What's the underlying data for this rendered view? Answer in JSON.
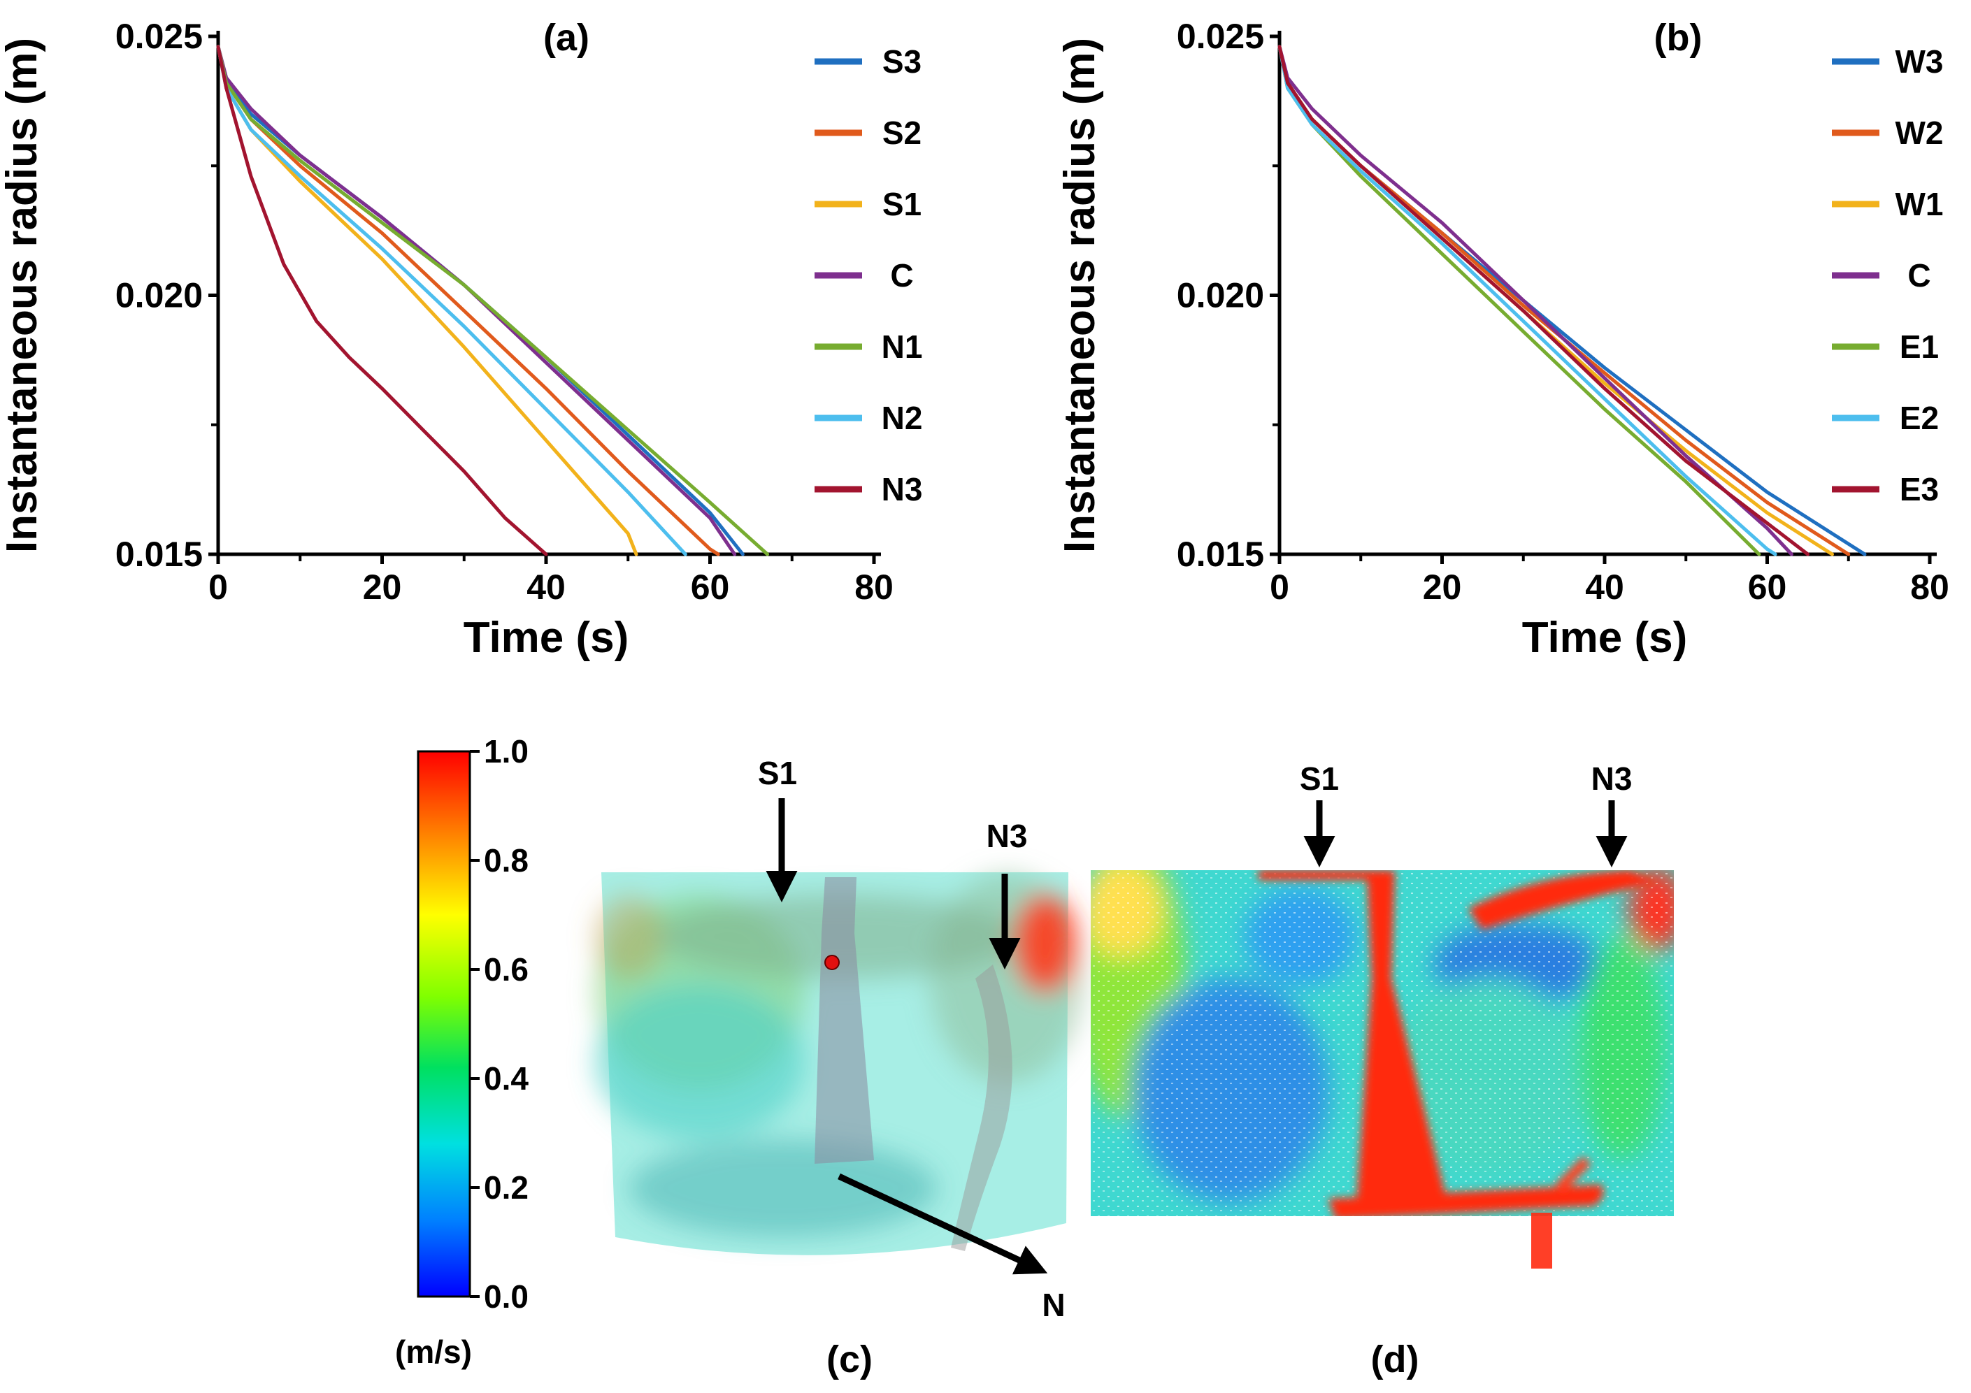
{
  "chart_data": [
    {
      "type": "line",
      "panel_label": "(a)",
      "xlabel": "Time (s)",
      "ylabel": "Instantaneous radius (m)",
      "xlim": [
        0,
        80
      ],
      "ylim": [
        0.015,
        0.025
      ],
      "x_ticks": [
        0,
        20,
        40,
        60,
        80
      ],
      "x_tick_labels": [
        "0",
        "20",
        "40",
        "60",
        "80"
      ],
      "y_ticks": [
        0.015,
        0.02,
        0.025
      ],
      "y_tick_labels": [
        "0.015",
        "0.020",
        "0.025"
      ],
      "legend_position": "right",
      "series": [
        {
          "name": "S3",
          "color": "#1f6fc0",
          "x": [
            0,
            1,
            4,
            10,
            20,
            30,
            40,
            50,
            60,
            64
          ],
          "y": [
            0.0248,
            0.0241,
            0.0235,
            0.0227,
            0.0215,
            0.0202,
            0.0188,
            0.0173,
            0.0158,
            0.015
          ]
        },
        {
          "name": "S2",
          "color": "#e05a1c",
          "x": [
            0,
            1,
            4,
            10,
            20,
            30,
            40,
            50,
            60,
            61
          ],
          "y": [
            0.0248,
            0.0241,
            0.0234,
            0.0225,
            0.0212,
            0.0197,
            0.0182,
            0.0166,
            0.0151,
            0.015
          ]
        },
        {
          "name": "S1",
          "color": "#f2b21b",
          "x": [
            0,
            1,
            4,
            10,
            20,
            30,
            40,
            50,
            51
          ],
          "y": [
            0.0248,
            0.024,
            0.0232,
            0.0222,
            0.0207,
            0.019,
            0.0172,
            0.0154,
            0.015
          ]
        },
        {
          "name": "C",
          "color": "#7e2f8e",
          "x": [
            0,
            1,
            4,
            10,
            20,
            30,
            40,
            50,
            60,
            63
          ],
          "y": [
            0.0248,
            0.0242,
            0.0236,
            0.0227,
            0.0215,
            0.0202,
            0.0187,
            0.0172,
            0.0157,
            0.015
          ]
        },
        {
          "name": "N1",
          "color": "#77ac30",
          "x": [
            0,
            1,
            4,
            10,
            20,
            30,
            40,
            50,
            60,
            67
          ],
          "y": [
            0.0248,
            0.0241,
            0.0234,
            0.0226,
            0.0214,
            0.0202,
            0.0188,
            0.0174,
            0.016,
            0.015
          ]
        },
        {
          "name": "N2",
          "color": "#4dbeee",
          "x": [
            0,
            1,
            4,
            10,
            20,
            30,
            40,
            50,
            57
          ],
          "y": [
            0.0248,
            0.024,
            0.0232,
            0.0223,
            0.0209,
            0.0194,
            0.0178,
            0.0162,
            0.015
          ]
        },
        {
          "name": "N3",
          "color": "#a2142f",
          "x": [
            0,
            1,
            4,
            8,
            12,
            16,
            20,
            25,
            30,
            35,
            40
          ],
          "y": [
            0.0248,
            0.024,
            0.0223,
            0.0206,
            0.0195,
            0.0188,
            0.0182,
            0.0174,
            0.0166,
            0.0157,
            0.015
          ]
        }
      ]
    },
    {
      "type": "line",
      "panel_label": "(b)",
      "xlabel": "Time (s)",
      "ylabel": "Instantaneous radius (m)",
      "xlim": [
        0,
        80
      ],
      "ylim": [
        0.015,
        0.025
      ],
      "x_ticks": [
        0,
        20,
        40,
        60,
        80
      ],
      "x_tick_labels": [
        "0",
        "20",
        "40",
        "60",
        "80"
      ],
      "y_ticks": [
        0.015,
        0.02,
        0.025
      ],
      "y_tick_labels": [
        "0.015",
        "0.020",
        "0.025"
      ],
      "legend_position": "right",
      "series": [
        {
          "name": "W3",
          "color": "#1f6fc0",
          "x": [
            0,
            1,
            4,
            10,
            20,
            30,
            40,
            50,
            60,
            72
          ],
          "y": [
            0.0248,
            0.0241,
            0.0234,
            0.0225,
            0.0212,
            0.0199,
            0.0186,
            0.0174,
            0.0162,
            0.015
          ]
        },
        {
          "name": "W2",
          "color": "#e05a1c",
          "x": [
            0,
            1,
            4,
            10,
            20,
            30,
            40,
            50,
            60,
            70
          ],
          "y": [
            0.0248,
            0.0241,
            0.0234,
            0.0225,
            0.0212,
            0.0198,
            0.0185,
            0.0172,
            0.016,
            0.015
          ]
        },
        {
          "name": "W1",
          "color": "#f2b21b",
          "x": [
            0,
            1,
            4,
            10,
            20,
            30,
            40,
            50,
            60,
            68
          ],
          "y": [
            0.0248,
            0.0241,
            0.0234,
            0.0225,
            0.0211,
            0.0197,
            0.0183,
            0.017,
            0.0158,
            0.015
          ]
        },
        {
          "name": "C",
          "color": "#7e2f8e",
          "x": [
            0,
            1,
            4,
            10,
            20,
            30,
            40,
            50,
            60,
            63
          ],
          "y": [
            0.0248,
            0.0242,
            0.0236,
            0.0227,
            0.0214,
            0.0199,
            0.0184,
            0.0169,
            0.0155,
            0.015
          ]
        },
        {
          "name": "E1",
          "color": "#77ac30",
          "x": [
            0,
            1,
            4,
            10,
            20,
            30,
            40,
            50,
            59
          ],
          "y": [
            0.0248,
            0.024,
            0.0233,
            0.0223,
            0.0208,
            0.0193,
            0.0178,
            0.0164,
            0.015
          ]
        },
        {
          "name": "E2",
          "color": "#4dbeee",
          "x": [
            0,
            1,
            4,
            10,
            20,
            30,
            40,
            50,
            60,
            61
          ],
          "y": [
            0.0248,
            0.024,
            0.0233,
            0.0224,
            0.021,
            0.0195,
            0.018,
            0.0165,
            0.0151,
            0.015
          ]
        },
        {
          "name": "E3",
          "color": "#a2142f",
          "x": [
            0,
            1,
            4,
            10,
            20,
            30,
            40,
            50,
            60,
            65
          ],
          "y": [
            0.0248,
            0.0241,
            0.0234,
            0.0225,
            0.0211,
            0.0197,
            0.0182,
            0.0168,
            0.0156,
            0.015
          ]
        }
      ]
    }
  ],
  "colorbar": {
    "unit": "(m/s)",
    "tick_labels": [
      "1.0",
      "0.8",
      "0.6",
      "0.4",
      "0.2",
      "0.0"
    ],
    "colors": [
      "#ff0000",
      "#ff8000",
      "#ffff00",
      "#80ff00",
      "#00e060",
      "#00e0e0",
      "#0080ff",
      "#0000ff"
    ]
  },
  "panel_c": {
    "label": "(c)",
    "arrow_s1": "S1",
    "arrow_n3": "N3",
    "direction": "N"
  },
  "panel_d": {
    "label": "(d)",
    "arrow_s1": "S1",
    "arrow_n3": "N3"
  }
}
